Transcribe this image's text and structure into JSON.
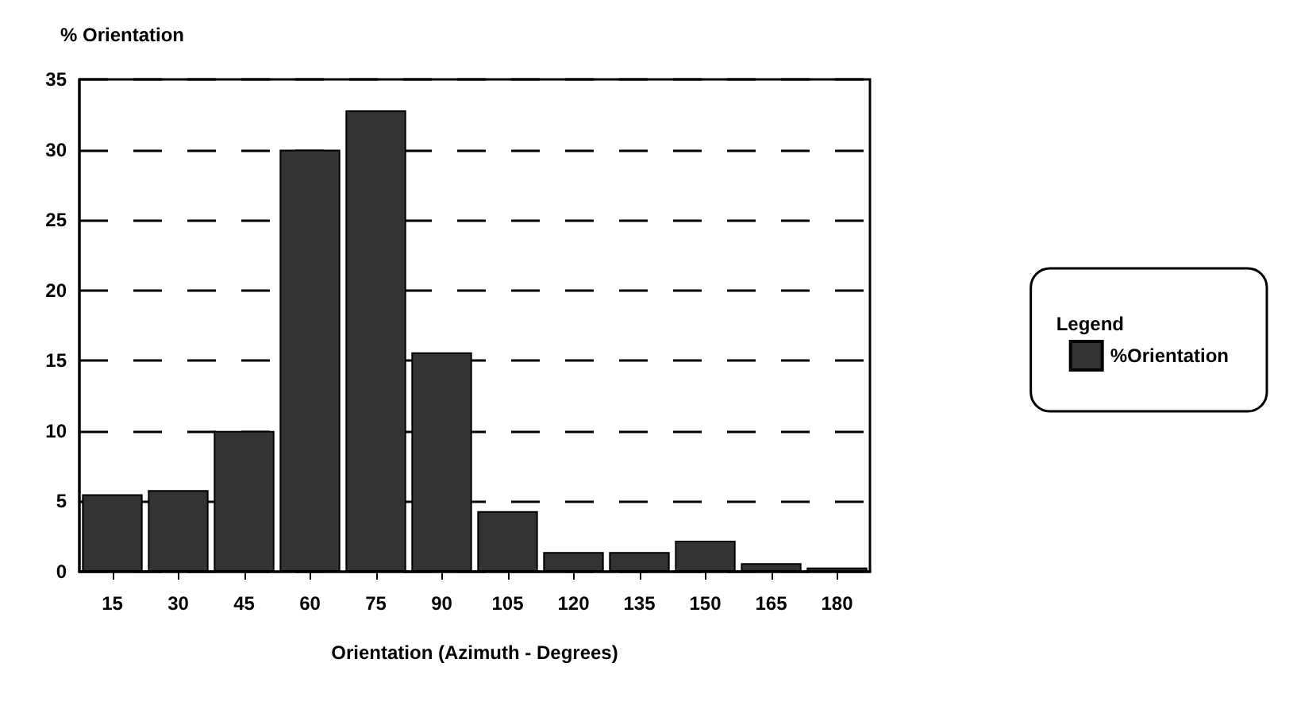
{
  "chart_data": {
    "type": "bar",
    "ylabel": "% Orientation",
    "xlabel": "Orientation (Azimuth - Degrees)",
    "legend_title": "Legend",
    "categories": [
      "15",
      "30",
      "45",
      "60",
      "75",
      "90",
      "105",
      "120",
      "135",
      "150",
      "165",
      "180"
    ],
    "series": [
      {
        "name": "%Orientation",
        "color": "#333333",
        "values": [
          5.5,
          5.8,
          10,
          30,
          32.8,
          15.6,
          4.3,
          1.4,
          1.4,
          2.2,
          0.6,
          0.3
        ]
      }
    ],
    "ylim": [
      0,
      35
    ],
    "yticks": [
      0,
      5,
      10,
      15,
      20,
      25,
      30,
      35
    ],
    "grid": "y",
    "line_style": "dashed",
    "legend": "right"
  }
}
